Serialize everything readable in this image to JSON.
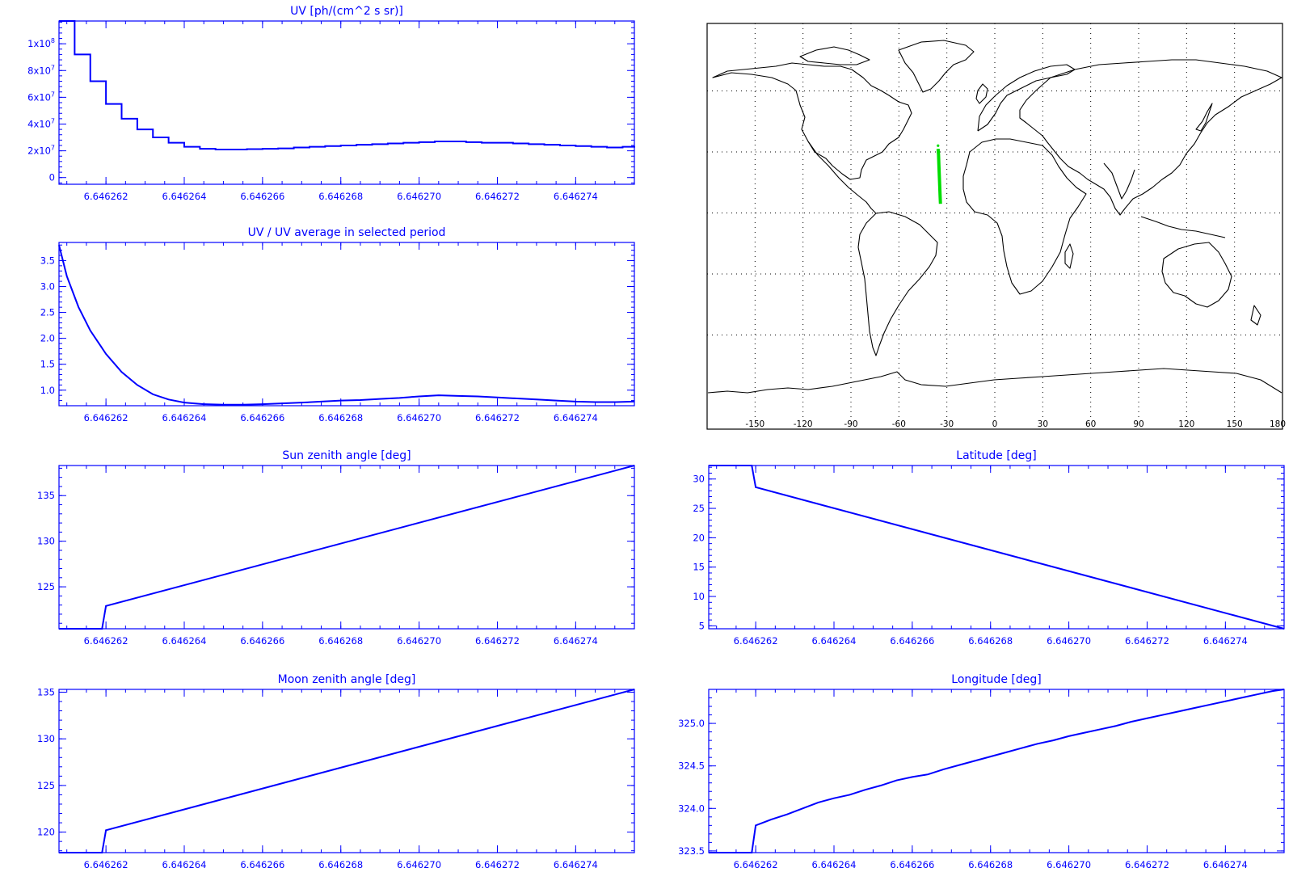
{
  "chart_data": [
    {
      "id": "uv",
      "type": "line",
      "title": "UV [ph/(cm^2 s sr)]",
      "step": true,
      "xlim": [
        6.6462608,
        6.6462755
      ],
      "ylim": [
        -5000000,
        117000000
      ],
      "xticks": [
        6.646262,
        6.646264,
        6.646266,
        6.646268,
        6.64627,
        6.646272,
        6.646274
      ],
      "xtick_labels": [
        "6.646262",
        "6.646264",
        "6.646266",
        "6.646268",
        "6.646270",
        "6.646272",
        "6.646274"
      ],
      "yticks": [
        0,
        20000000,
        40000000,
        60000000,
        80000000,
        100000000
      ],
      "ytick_labels": [
        "0",
        "2x10^7",
        "4x10^7",
        "6x10^7",
        "8x10^7",
        "1x10^8"
      ],
      "series": [
        {
          "x": [
            6.6462608,
            6.6462612,
            6.6462616,
            6.646262,
            6.6462624,
            6.6462628,
            6.6462632,
            6.6462636,
            6.646264,
            6.6462644,
            6.6462648,
            6.6462652,
            6.6462656,
            6.646266,
            6.6462664,
            6.6462668,
            6.6462672,
            6.6462676,
            6.646268,
            6.6462684,
            6.6462688,
            6.6462692,
            6.6462696,
            6.64627,
            6.6462704,
            6.6462708,
            6.6462712,
            6.6462716,
            6.646272,
            6.6462724,
            6.6462728,
            6.6462732,
            6.6462736,
            6.646274,
            6.6462744,
            6.6462748,
            6.6462752,
            6.6462755
          ],
          "y": [
            117000000,
            92000000,
            72000000,
            55000000,
            44000000,
            36000000,
            30000000,
            26000000,
            23000000,
            21500000,
            21000000,
            21000000,
            21300000,
            21500000,
            21800000,
            22500000,
            23000000,
            23500000,
            24000000,
            24500000,
            25000000,
            25500000,
            26000000,
            26500000,
            27000000,
            27000000,
            26500000,
            26000000,
            26000000,
            25500000,
            25000000,
            24500000,
            24000000,
            23500000,
            23000000,
            22500000,
            23000000,
            23500000
          ]
        }
      ]
    },
    {
      "id": "uvratio",
      "type": "line",
      "title": "UV / UV average in selected period",
      "xlim": [
        6.6462608,
        6.6462755
      ],
      "ylim": [
        0.7,
        3.85
      ],
      "xticks": [
        6.646262,
        6.646264,
        6.646266,
        6.646268,
        6.64627,
        6.646272,
        6.646274
      ],
      "xtick_labels": [
        "6.646262",
        "6.646264",
        "6.646266",
        "6.646268",
        "6.646270",
        "6.646272",
        "6.646274"
      ],
      "yticks": [
        1.0,
        1.5,
        2.0,
        2.5,
        3.0,
        3.5
      ],
      "ytick_labels": [
        "1.0",
        "1.5",
        "2.0",
        "2.5",
        "3.0",
        "3.5"
      ],
      "series": [
        {
          "x": [
            6.6462608,
            6.646261,
            6.6462613,
            6.6462616,
            6.646262,
            6.6462624,
            6.6462628,
            6.6462632,
            6.6462636,
            6.646264,
            6.6462645,
            6.646265,
            6.6462655,
            6.646266,
            6.6462665,
            6.646267,
            6.6462675,
            6.646268,
            6.6462685,
            6.646269,
            6.6462695,
            6.64627,
            6.6462705,
            6.646271,
            6.6462715,
            6.646272,
            6.6462725,
            6.646273,
            6.6462735,
            6.646274,
            6.6462745,
            6.646275,
            6.6462755
          ],
          "y": [
            3.8,
            3.2,
            2.6,
            2.15,
            1.7,
            1.35,
            1.1,
            0.92,
            0.82,
            0.76,
            0.73,
            0.72,
            0.72,
            0.73,
            0.745,
            0.76,
            0.78,
            0.8,
            0.81,
            0.83,
            0.85,
            0.88,
            0.9,
            0.89,
            0.88,
            0.86,
            0.84,
            0.82,
            0.8,
            0.78,
            0.77,
            0.77,
            0.78
          ]
        }
      ]
    },
    {
      "id": "sza",
      "type": "line",
      "title": "Sun zenith angle [deg]",
      "xlim": [
        6.6462608,
        6.6462755
      ],
      "ylim": [
        120.4,
        138.3
      ],
      "xticks": [
        6.646262,
        6.646264,
        6.646266,
        6.646268,
        6.64627,
        6.646272,
        6.646274
      ],
      "xtick_labels": [
        "6.646262",
        "6.646264",
        "6.646266",
        "6.646268",
        "6.646270",
        "6.646272",
        "6.646274"
      ],
      "yticks": [
        125,
        130,
        135
      ],
      "ytick_labels": [
        "125",
        "130",
        "135"
      ],
      "series": [
        {
          "x": [
            6.6462608,
            6.6462619,
            6.646262,
            6.6462755
          ],
          "y": [
            120.4,
            120.4,
            122.9,
            138.3
          ]
        }
      ]
    },
    {
      "id": "lat",
      "type": "line",
      "title": "Latitude [deg]",
      "xlim": [
        6.6462608,
        6.6462755
      ],
      "ylim": [
        4.5,
        32.3
      ],
      "xticks": [
        6.646262,
        6.646264,
        6.646266,
        6.646268,
        6.64627,
        6.646272,
        6.646274
      ],
      "xtick_labels": [
        "6.646262",
        "6.646264",
        "6.646266",
        "6.646268",
        "6.646270",
        "6.646272",
        "6.646274"
      ],
      "yticks": [
        5,
        10,
        15,
        20,
        25,
        30
      ],
      "ytick_labels": [
        "5",
        "10",
        "15",
        "20",
        "25",
        "30"
      ],
      "series": [
        {
          "x": [
            6.6462608,
            6.6462619,
            6.646262,
            6.6462755
          ],
          "y": [
            32.3,
            32.3,
            28.6,
            4.5
          ]
        }
      ]
    },
    {
      "id": "mza",
      "type": "line",
      "title": "Moon zenith angle [deg]",
      "xlim": [
        6.6462608,
        6.6462755
      ],
      "ylim": [
        117.8,
        135.3
      ],
      "xticks": [
        6.646262,
        6.646264,
        6.646266,
        6.646268,
        6.64627,
        6.646272,
        6.646274
      ],
      "xtick_labels": [
        "6.646262",
        "6.646264",
        "6.646266",
        "6.646268",
        "6.646270",
        "6.646272",
        "6.646274"
      ],
      "yticks": [
        120,
        125,
        130,
        135
      ],
      "ytick_labels": [
        "120",
        "125",
        "130",
        "135"
      ],
      "series": [
        {
          "x": [
            6.6462608,
            6.6462619,
            6.646262,
            6.6462755
          ],
          "y": [
            117.8,
            117.8,
            120.2,
            135.3
          ]
        }
      ]
    },
    {
      "id": "lon",
      "type": "line",
      "title": "Longitude [deg]",
      "xlim": [
        6.6462608,
        6.6462755
      ],
      "ylim": [
        323.48,
        325.4
      ],
      "xticks": [
        6.646262,
        6.646264,
        6.646266,
        6.646268,
        6.64627,
        6.646272,
        6.646274
      ],
      "xtick_labels": [
        "6.646262",
        "6.646264",
        "6.646266",
        "6.646268",
        "6.646270",
        "6.646272",
        "6.646274"
      ],
      "yticks": [
        323.5,
        324.0,
        324.5,
        325.0
      ],
      "ytick_labels": [
        "323.5",
        "324.0",
        "324.5",
        "325.0"
      ],
      "series": [
        {
          "x": [
            6.6462608,
            6.6462619,
            6.646262,
            6.6462624,
            6.6462628,
            6.6462632,
            6.6462636,
            6.646264,
            6.6462644,
            6.6462648,
            6.6462652,
            6.6462656,
            6.646266,
            6.6462664,
            6.6462668,
            6.6462672,
            6.6462676,
            6.646268,
            6.6462684,
            6.6462688,
            6.6462692,
            6.6462696,
            6.64627,
            6.6462704,
            6.6462708,
            6.6462712,
            6.6462716,
            6.646272,
            6.6462724,
            6.6462728,
            6.6462732,
            6.6462736,
            6.646274,
            6.6462744,
            6.6462748,
            6.6462752,
            6.6462755
          ],
          "y": [
            323.48,
            323.48,
            323.8,
            323.87,
            323.93,
            324.0,
            324.07,
            324.12,
            324.16,
            324.22,
            324.27,
            324.33,
            324.37,
            324.4,
            324.46,
            324.51,
            324.56,
            324.61,
            324.66,
            324.71,
            324.76,
            324.8,
            324.85,
            324.89,
            324.93,
            324.97,
            325.02,
            325.06,
            325.1,
            325.14,
            325.18,
            325.22,
            325.26,
            325.3,
            325.34,
            325.38,
            325.4
          ]
        }
      ]
    },
    {
      "id": "map",
      "type": "scatter",
      "title": "",
      "projection": "equirectangular",
      "xlim": [
        -180,
        180
      ],
      "ylim": [
        -90,
        90
      ],
      "xticks": [
        -150,
        -120,
        -90,
        -60,
        -30,
        0,
        30,
        60,
        90,
        120,
        150,
        180
      ],
      "xtick_labels": [
        "-150",
        "-120",
        "-90",
        "-60",
        "-30",
        "0",
        "30",
        "60",
        "90",
        "120",
        "150",
        "180"
      ],
      "grid": "dotted",
      "track": {
        "color": "#00dd00",
        "lon": [
          -35.5,
          -35.2,
          -35.0,
          -34.8,
          -34.6,
          -34.4,
          -34.2,
          -34.0
        ],
        "lat": [
          31.5,
          28.6,
          24,
          20,
          16,
          12,
          8,
          4.5
        ]
      }
    }
  ]
}
